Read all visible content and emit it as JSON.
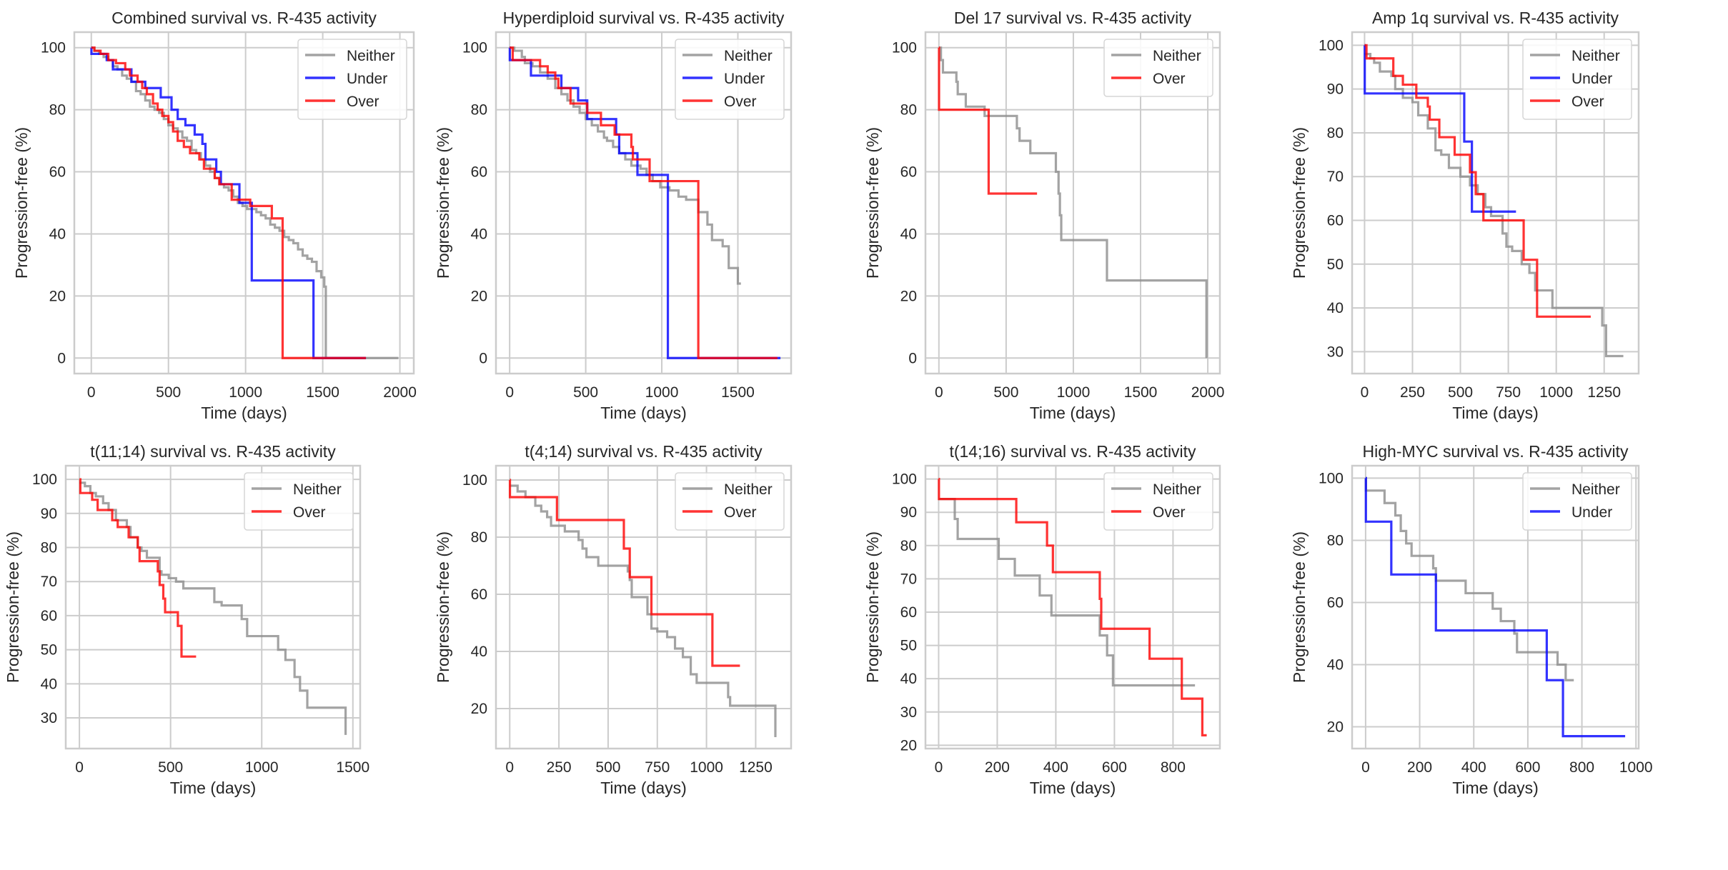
{
  "figure": {
    "colors": {
      "Neither": "#8c8c8c",
      "Under": "#0000ff",
      "Over": "#ff0000",
      "grid": "#cccccc",
      "frame": "#cccccc"
    }
  },
  "chart_data": [
    {
      "type": "line",
      "step": true,
      "title": "Combined survival vs. R-435 activity",
      "xlabel": "Time (days)",
      "ylabel": "Progression-free (%)",
      "xlim": [
        -110,
        2090
      ],
      "ylim": [
        -5,
        105
      ],
      "xticks": [
        0,
        500,
        1000,
        1500,
        2000
      ],
      "yticks": [
        0,
        20,
        40,
        60,
        80,
        100
      ],
      "grid": true,
      "legend": {
        "position": "top-right",
        "entries": [
          "Neither",
          "Under",
          "Over"
        ]
      },
      "series": [
        {
          "name": "Neither",
          "x": [
            0,
            20,
            50,
            80,
            110,
            140,
            170,
            200,
            230,
            260,
            290,
            320,
            350,
            380,
            410,
            440,
            470,
            500,
            530,
            560,
            590,
            620,
            650,
            680,
            710,
            740,
            770,
            800,
            830,
            860,
            890,
            920,
            950,
            980,
            1010,
            1040,
            1070,
            1100,
            1130,
            1160,
            1190,
            1220,
            1250,
            1280,
            1310,
            1340,
            1370,
            1400,
            1430,
            1460,
            1490,
            1510,
            1520,
            1990
          ],
          "y": [
            100,
            99,
            98,
            97,
            96,
            94,
            93,
            91,
            90,
            89,
            86,
            85,
            83,
            81,
            80,
            79,
            77,
            75,
            74,
            73,
            71,
            70,
            67,
            66,
            64,
            62,
            60,
            58,
            56,
            55,
            54,
            52,
            50,
            49,
            48,
            48,
            47,
            46,
            45,
            43,
            42,
            41,
            39,
            38,
            37,
            35,
            33,
            32,
            31,
            28,
            26,
            23,
            0,
            0
          ]
        },
        {
          "name": "Under",
          "x": [
            0,
            1,
            100,
            140,
            260,
            350,
            450,
            520,
            560,
            610,
            670,
            720,
            740,
            810,
            840,
            960,
            1040,
            1440,
            1780
          ],
          "y": [
            100,
            98,
            96,
            93,
            89,
            87,
            84,
            80,
            77,
            75,
            72,
            69,
            64,
            60,
            56,
            50,
            25,
            0,
            0
          ]
        },
        {
          "name": "Over",
          "x": [
            0,
            20,
            60,
            110,
            160,
            220,
            250,
            300,
            330,
            360,
            400,
            430,
            460,
            500,
            530,
            560,
            600,
            640,
            700,
            730,
            800,
            830,
            910,
            1030,
            1170,
            1240,
            1780
          ],
          "y": [
            100,
            99,
            98,
            96,
            95,
            93,
            91,
            89,
            87,
            85,
            82,
            80,
            78,
            76,
            73,
            70,
            68,
            66,
            64,
            61,
            58,
            56,
            51,
            49,
            45,
            0,
            0
          ]
        }
      ]
    },
    {
      "type": "line",
      "step": true,
      "title": "Hyperdiploid survival vs. R-435 activity",
      "xlabel": "Time (days)",
      "ylabel": "Progression-free (%)",
      "xlim": [
        -90,
        1850
      ],
      "ylim": [
        -5,
        105
      ],
      "xticks": [
        0,
        500,
        1000,
        1500
      ],
      "yticks": [
        0,
        20,
        40,
        60,
        80,
        100
      ],
      "grid": true,
      "legend": {
        "position": "top-right",
        "entries": [
          "Neither",
          "Under",
          "Over"
        ]
      },
      "series": [
        {
          "name": "Neither",
          "x": [
            0,
            30,
            80,
            100,
            150,
            200,
            250,
            300,
            340,
            380,
            420,
            460,
            500,
            540,
            580,
            620,
            640,
            680,
            720,
            760,
            800,
            860,
            900,
            940,
            990,
            1050,
            1110,
            1160,
            1240,
            1300,
            1330,
            1400,
            1440,
            1500,
            1520
          ],
          "y": [
            100,
            99,
            97,
            95,
            94,
            92,
            90,
            87,
            85,
            83,
            81,
            79,
            77,
            75,
            73,
            71,
            70,
            68,
            66,
            64,
            62,
            61,
            59,
            57,
            55,
            54,
            52,
            51,
            47,
            43,
            38,
            36,
            29,
            24,
            24
          ]
        },
        {
          "name": "Under",
          "x": [
            0,
            1,
            140,
            340,
            450,
            510,
            700,
            720,
            840,
            1040,
            1240,
            1780
          ],
          "y": [
            100,
            96,
            91,
            87,
            83,
            77,
            72,
            66,
            59,
            0,
            0,
            0
          ]
        },
        {
          "name": "Over",
          "x": [
            0,
            20,
            200,
            250,
            300,
            320,
            400,
            510,
            600,
            690,
            800,
            810,
            920,
            1240,
            1760
          ],
          "y": [
            100,
            96,
            94,
            92,
            90,
            87,
            82,
            79,
            75,
            72,
            68,
            64,
            57,
            0,
            0
          ]
        }
      ]
    },
    {
      "type": "line",
      "step": true,
      "title": "Del 17 survival vs. R-435 activity",
      "xlabel": "Time (days)",
      "ylabel": "Progression-free (%)",
      "xlim": [
        -100,
        2090
      ],
      "ylim": [
        -5,
        105
      ],
      "xticks": [
        0,
        500,
        1000,
        1500,
        2000
      ],
      "yticks": [
        0,
        20,
        40,
        60,
        80,
        100
      ],
      "grid": true,
      "legend": {
        "position": "top-right",
        "entries": [
          "Neither",
          "Over"
        ]
      },
      "series": [
        {
          "name": "Neither",
          "x": [
            0,
            15,
            30,
            130,
            140,
            200,
            340,
            580,
            600,
            680,
            870,
            890,
            900,
            910,
            1250,
            1990
          ],
          "y": [
            100,
            96,
            92,
            89,
            85,
            81,
            78,
            74,
            70,
            66,
            60,
            53,
            46,
            38,
            25,
            0
          ]
        },
        {
          "name": "Over",
          "x": [
            0,
            1,
            370,
            730
          ],
          "y": [
            100,
            80,
            53,
            53
          ]
        }
      ]
    },
    {
      "type": "line",
      "step": true,
      "title": "Amp 1q survival vs. R-435 activity",
      "xlabel": "Time (days)",
      "ylabel": "Progression-free (%)",
      "xlim": [
        -65,
        1430
      ],
      "ylim": [
        25,
        103
      ],
      "xticks": [
        0,
        250,
        500,
        750,
        1000,
        1250
      ],
      "yticks": [
        30,
        40,
        50,
        60,
        70,
        80,
        90,
        100
      ],
      "grid": true,
      "legend": {
        "position": "top-right",
        "entries": [
          "Neither",
          "Under",
          "Over"
        ]
      },
      "series": [
        {
          "name": "Neither",
          "x": [
            0,
            30,
            50,
            80,
            140,
            160,
            200,
            250,
            280,
            330,
            370,
            400,
            440,
            500,
            550,
            590,
            630,
            660,
            720,
            740,
            770,
            820,
            860,
            890,
            980,
            1240,
            1260,
            1350
          ],
          "y": [
            98,
            97,
            96,
            94,
            93,
            90,
            88,
            87,
            84,
            81,
            76,
            75,
            72,
            70,
            68,
            66,
            63,
            61,
            57,
            54,
            53,
            50,
            48,
            44,
            40,
            36,
            29,
            29
          ]
        },
        {
          "name": "Under",
          "x": [
            0,
            1,
            520,
            560,
            790
          ],
          "y": [
            100,
            89,
            78,
            62,
            62
          ]
        },
        {
          "name": "Over",
          "x": [
            0,
            10,
            150,
            200,
            270,
            330,
            340,
            390,
            470,
            550,
            580,
            620,
            830,
            900,
            1180
          ],
          "y": [
            100,
            97,
            93,
            91,
            88,
            86,
            83,
            79,
            75,
            71,
            66,
            60,
            51,
            38,
            38
          ]
        }
      ]
    },
    {
      "type": "line",
      "step": true,
      "title": "t(11;14) survival vs. R-435 activity",
      "xlabel": "Time (days)",
      "ylabel": "Progression-free (%)",
      "xlim": [
        -75,
        1540
      ],
      "ylim": [
        21,
        104
      ],
      "xticks": [
        0,
        500,
        1000,
        1500
      ],
      "yticks": [
        30,
        40,
        50,
        60,
        70,
        80,
        90,
        100
      ],
      "grid": true,
      "legend": {
        "position": "top-right",
        "entries": [
          "Neither",
          "Over"
        ]
      },
      "series": [
        {
          "name": "Neither",
          "x": [
            0,
            30,
            60,
            90,
            130,
            160,
            200,
            260,
            280,
            320,
            340,
            370,
            440,
            450,
            490,
            530,
            570,
            740,
            780,
            890,
            920,
            1090,
            1130,
            1180,
            1210,
            1250,
            1460
          ],
          "y": [
            99,
            98,
            96,
            95,
            93,
            91,
            88,
            86,
            83,
            80,
            79,
            77,
            73,
            72,
            71,
            70,
            68,
            64,
            63,
            59,
            54,
            50,
            47,
            42,
            38,
            33,
            25
          ]
        },
        {
          "name": "Over",
          "x": [
            0,
            5,
            70,
            100,
            180,
            210,
            270,
            320,
            330,
            430,
            440,
            460,
            470,
            540,
            560,
            640
          ],
          "y": [
            100,
            96,
            94,
            91,
            88,
            86,
            83,
            80,
            76,
            73,
            69,
            65,
            61,
            57,
            48,
            48
          ]
        }
      ]
    },
    {
      "type": "line",
      "step": true,
      "title": "t(4;14) survival vs. R-435 activity",
      "xlabel": "Time (days)",
      "ylabel": "Progression-free (%)",
      "xlim": [
        -70,
        1430
      ],
      "ylim": [
        6,
        105
      ],
      "xticks": [
        0,
        250,
        500,
        750,
        1000,
        1250
      ],
      "yticks": [
        20,
        40,
        60,
        80,
        100
      ],
      "grid": true,
      "legend": {
        "position": "top-right",
        "entries": [
          "Neither",
          "Over"
        ]
      },
      "series": [
        {
          "name": "Neither",
          "x": [
            0,
            40,
            80,
            130,
            160,
            190,
            210,
            280,
            350,
            370,
            390,
            450,
            600,
            610,
            620,
            700,
            720,
            750,
            800,
            840,
            880,
            920,
            950,
            1110,
            1120,
            1350
          ],
          "y": [
            98,
            96,
            94,
            91,
            89,
            87,
            84,
            82,
            79,
            76,
            73,
            70,
            68,
            65,
            59,
            53,
            48,
            47,
            45,
            41,
            38,
            32,
            29,
            24,
            21,
            10
          ]
        },
        {
          "name": "Over",
          "x": [
            0,
            1,
            240,
            580,
            610,
            720,
            1030,
            1170
          ],
          "y": [
            100,
            94,
            86,
            76,
            66,
            53,
            35,
            35
          ]
        }
      ]
    },
    {
      "type": "line",
      "step": true,
      "title": "t(14;16) survival vs. R-435 activity",
      "xlabel": "Time (days)",
      "ylabel": "Progression-free (%)",
      "xlim": [
        -45,
        960
      ],
      "ylim": [
        19,
        104
      ],
      "xticks": [
        0,
        200,
        400,
        600,
        800
      ],
      "yticks": [
        20,
        30,
        40,
        50,
        60,
        70,
        80,
        90,
        100
      ],
      "grid": true,
      "legend": {
        "position": "top-right",
        "entries": [
          "Neither",
          "Over"
        ]
      },
      "series": [
        {
          "name": "Neither",
          "x": [
            0,
            55,
            65,
            205,
            260,
            345,
            385,
            550,
            575,
            595,
            875
          ],
          "y": [
            94,
            88,
            82,
            76,
            71,
            65,
            59,
            53,
            47,
            38,
            38
          ]
        },
        {
          "name": "Over",
          "x": [
            0,
            1,
            265,
            370,
            390,
            550,
            555,
            720,
            830,
            900,
            915
          ],
          "y": [
            100,
            94,
            87,
            80,
            72,
            64,
            55,
            46,
            34,
            23,
            23
          ]
        }
      ]
    },
    {
      "type": "line",
      "step": true,
      "title": "High-MYC survival vs. R-435 activity",
      "xlabel": "Time (days)",
      "ylabel": "Progression-free (%)",
      "xlim": [
        -50,
        1010
      ],
      "ylim": [
        13,
        104
      ],
      "xticks": [
        0,
        200,
        400,
        600,
        800,
        1000
      ],
      "yticks": [
        20,
        40,
        60,
        80,
        100
      ],
      "grid": true,
      "legend": {
        "position": "top-right",
        "entries": [
          "Neither",
          "Under"
        ]
      },
      "series": [
        {
          "name": "Neither",
          "x": [
            0,
            1,
            70,
            110,
            130,
            150,
            170,
            250,
            260,
            370,
            470,
            500,
            550,
            560,
            710,
            740,
            770
          ],
          "y": [
            100,
            96,
            92,
            88,
            83,
            79,
            75,
            71,
            67,
            63,
            58,
            54,
            50,
            44,
            40,
            35,
            35
          ]
        },
        {
          "name": "Under",
          "x": [
            0,
            1,
            95,
            260,
            670,
            730,
            960
          ],
          "y": [
            100,
            86,
            69,
            51,
            35,
            17,
            17
          ]
        }
      ]
    }
  ]
}
